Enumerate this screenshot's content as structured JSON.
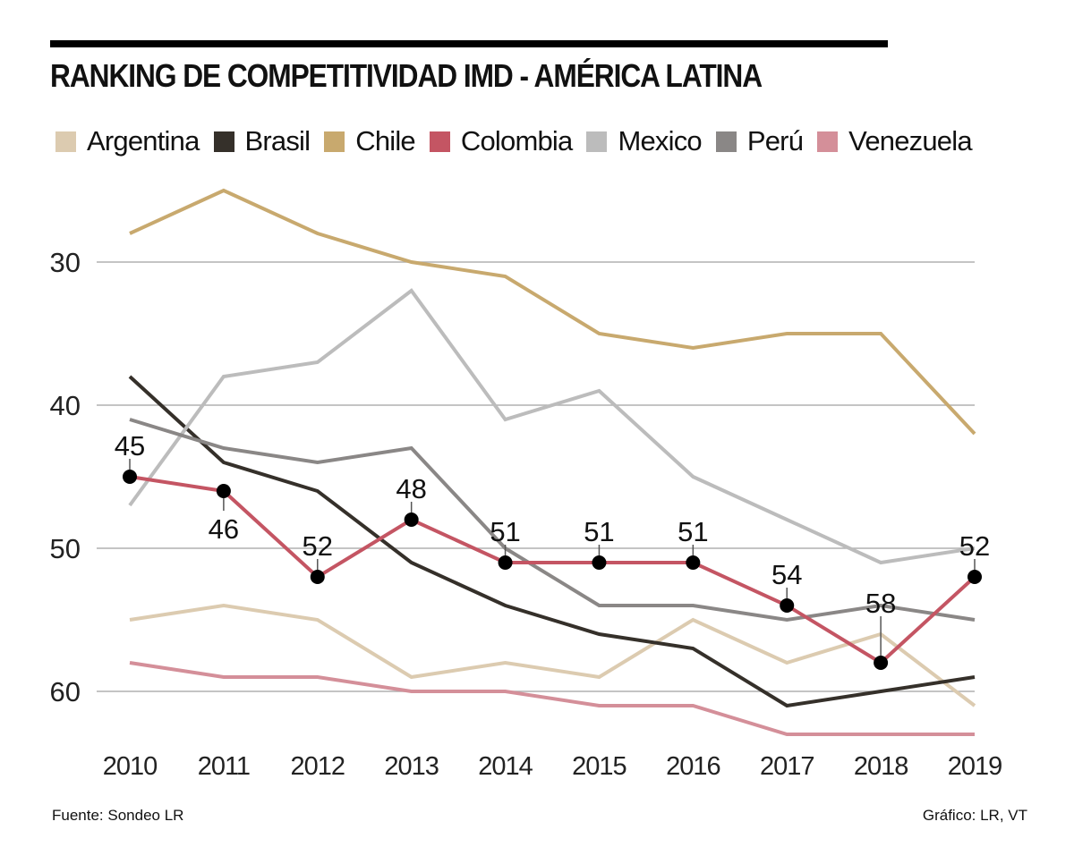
{
  "header": {
    "title": "RANKING DE COMPETITIVIDAD IMD - AMÉRICA LATINA"
  },
  "footer": {
    "source": "Fuente: Sondeo LR",
    "credit": "Gráfico: LR, VT"
  },
  "chart_data": {
    "type": "line",
    "title": "RANKING DE COMPETITIVIDAD IMD - AMÉRICA LATINA",
    "xlabel": "",
    "ylabel": "",
    "x": [
      2010,
      2011,
      2012,
      2013,
      2014,
      2015,
      2016,
      2017,
      2018,
      2019
    ],
    "x_tick_labels": [
      "2010",
      "2011",
      "2012",
      "2013",
      "2014",
      "2015",
      "2016",
      "2017",
      "2018",
      "2019"
    ],
    "y_ticks": [
      30,
      40,
      50,
      60
    ],
    "y_tick_labels": [
      "30",
      "40",
      "50",
      "60"
    ],
    "ylim": [
      23,
      64
    ],
    "y_inverted": true,
    "grid": "horizontal",
    "legend_position": "top",
    "series": [
      {
        "name": "Argentina",
        "color": "#dccbb0",
        "values": [
          55,
          54,
          55,
          59,
          58,
          59,
          55,
          58,
          56,
          61
        ]
      },
      {
        "name": "Brasil",
        "color": "#35302a",
        "values": [
          38,
          44,
          46,
          51,
          54,
          56,
          57,
          61,
          60,
          59
        ]
      },
      {
        "name": "Chile",
        "color": "#c8a96e",
        "values": [
          28,
          25,
          28,
          30,
          31,
          35,
          36,
          35,
          35,
          42
        ]
      },
      {
        "name": "Colombia",
        "color": "#c45563",
        "values": [
          45,
          46,
          52,
          48,
          51,
          51,
          51,
          54,
          58,
          52
        ],
        "labeled": true,
        "labels": [
          "45",
          "46",
          "52",
          "48",
          "51",
          "51",
          "51",
          "54",
          "58",
          "52"
        ],
        "label_side": [
          "above",
          "below",
          "above",
          "above",
          "above",
          "above",
          "above",
          "above",
          "above",
          "above"
        ]
      },
      {
        "name": "Mexico",
        "color": "#bcbcbc",
        "values": [
          47,
          38,
          37,
          32,
          41,
          39,
          45,
          48,
          51,
          50
        ]
      },
      {
        "name": "Perú",
        "color": "#8a8786",
        "values": [
          41,
          43,
          44,
          43,
          50,
          54,
          54,
          55,
          54,
          55
        ]
      },
      {
        "name": "Venezuela",
        "color": "#d48f99",
        "values": [
          58,
          59,
          59,
          60,
          60,
          61,
          61,
          63,
          63,
          63
        ]
      }
    ]
  }
}
